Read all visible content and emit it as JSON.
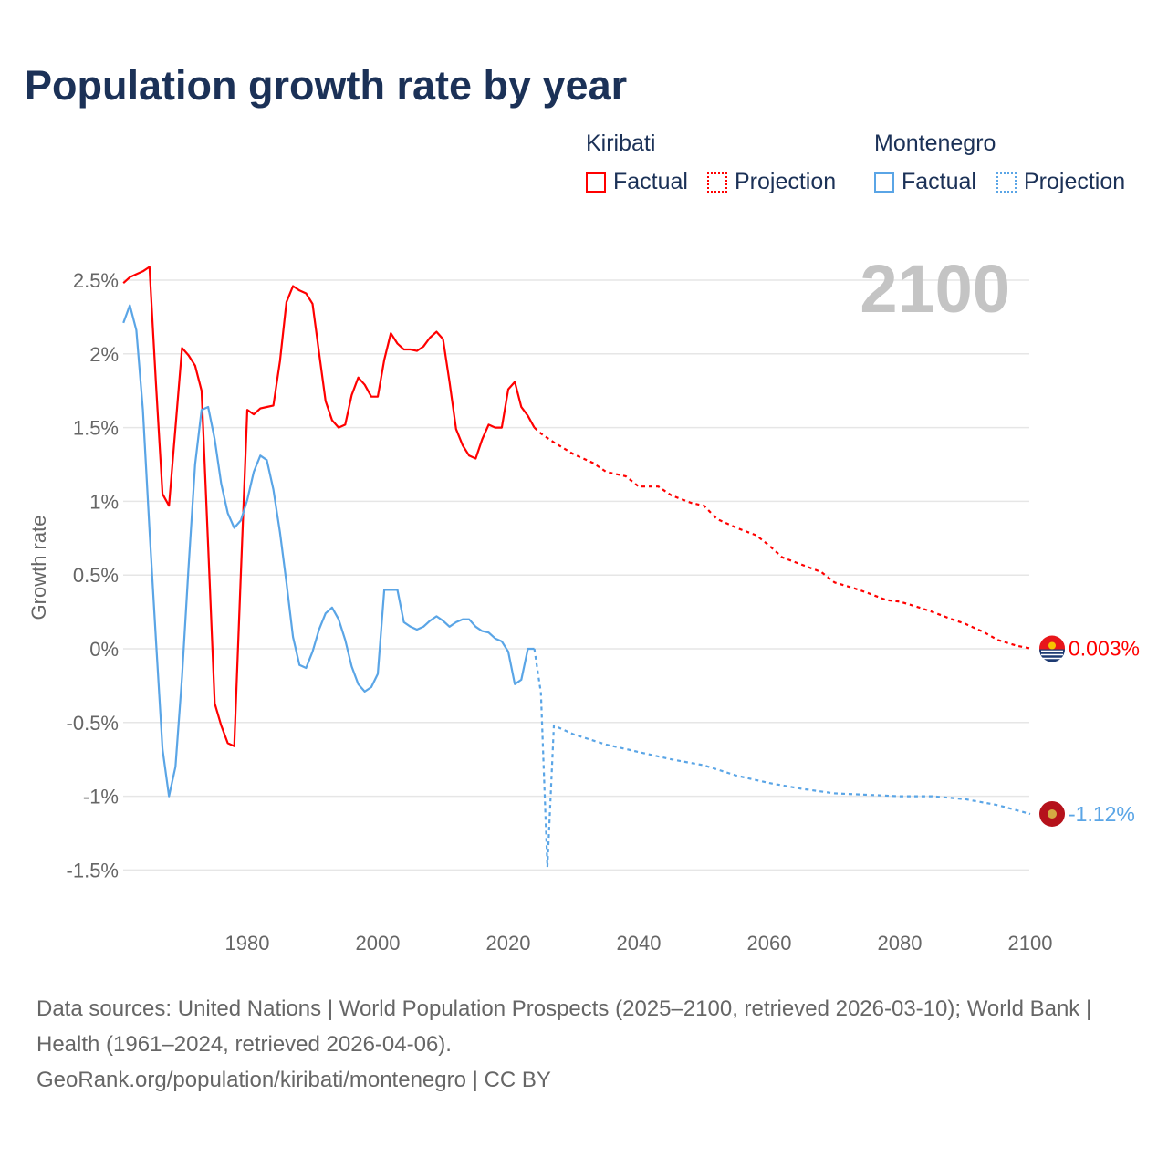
{
  "title": "Population growth rate by year",
  "legend": {
    "groups": [
      {
        "name": "Kiribati",
        "factual": "Factual",
        "projection": "Projection",
        "color": "#ff0000"
      },
      {
        "name": "Montenegro",
        "factual": "Factual",
        "projection": "Projection",
        "color": "#5aa5e6"
      }
    ]
  },
  "year_label": "2100",
  "footer": {
    "sources": "Data sources: United Nations | World Population Prospects (2025–2100, retrieved 2026-03-10); World Bank | Health (1961–2024, retrieved 2026-04-06).",
    "credit": "GeoRank.org/population/kiribati/montenegro | CC BY"
  },
  "chart_data": {
    "type": "line",
    "title": "Population growth rate by year",
    "xlabel": "",
    "ylabel": "Growth rate",
    "xlim": [
      1961,
      2100
    ],
    "ylim": [
      -1.5,
      2.6
    ],
    "x_ticks": [
      1980,
      2000,
      2020,
      2040,
      2060,
      2080,
      2100
    ],
    "y_ticks": [
      -1.5,
      -1,
      -0.5,
      0,
      0.5,
      1,
      1.5,
      2,
      2.5
    ],
    "y_tick_labels": [
      "-1.5%",
      "-1%",
      "-0.5%",
      "0%",
      "0.5%",
      "1%",
      "1.5%",
      "2%",
      "2.5%"
    ],
    "grid": true,
    "series": [
      {
        "name": "Kiribati",
        "kind": "factual",
        "color": "#ff0000",
        "x": [
          1961,
          1962,
          1963,
          1964,
          1965,
          1966,
          1967,
          1968,
          1969,
          1970,
          1971,
          1972,
          1973,
          1974,
          1975,
          1976,
          1977,
          1978,
          1979,
          1980,
          1981,
          1982,
          1983,
          1984,
          1985,
          1986,
          1987,
          1988,
          1989,
          1990,
          1991,
          1992,
          1993,
          1994,
          1995,
          1996,
          1997,
          1998,
          1999,
          2000,
          2001,
          2002,
          2003,
          2004,
          2005,
          2006,
          2007,
          2008,
          2009,
          2010,
          2011,
          2012,
          2013,
          2014,
          2015,
          2016,
          2017,
          2018,
          2019,
          2020,
          2021,
          2022,
          2023,
          2024
        ],
        "values": [
          2.48,
          2.52,
          2.54,
          2.56,
          2.59,
          1.8,
          1.05,
          0.97,
          1.5,
          2.04,
          1.99,
          1.92,
          1.75,
          0.7,
          -0.37,
          -0.52,
          -0.64,
          -0.66,
          0.5,
          1.62,
          1.59,
          1.63,
          1.64,
          1.65,
          1.95,
          2.35,
          2.46,
          2.43,
          2.41,
          2.34,
          2.01,
          1.68,
          1.55,
          1.5,
          1.52,
          1.72,
          1.84,
          1.79,
          1.71,
          1.71,
          1.96,
          2.14,
          2.07,
          2.03,
          2.03,
          2.02,
          2.05,
          2.11,
          2.15,
          2.1,
          1.81,
          1.49,
          1.38,
          1.31,
          1.29,
          1.42,
          1.52,
          1.5,
          1.5,
          1.76,
          1.81,
          1.64,
          1.58,
          1.5
        ]
      },
      {
        "name": "Kiribati",
        "kind": "projection",
        "color": "#ff0000",
        "x": [
          2024,
          2025,
          2027,
          2030,
          2033,
          2035,
          2038,
          2040,
          2043,
          2045,
          2048,
          2050,
          2052,
          2055,
          2058,
          2060,
          2062,
          2065,
          2068,
          2070,
          2073,
          2075,
          2078,
          2080,
          2083,
          2085,
          2088,
          2090,
          2093,
          2095,
          2098,
          2100
        ],
        "values": [
          1.5,
          1.46,
          1.4,
          1.32,
          1.26,
          1.2,
          1.17,
          1.1,
          1.1,
          1.04,
          0.99,
          0.97,
          0.88,
          0.82,
          0.77,
          0.7,
          0.62,
          0.57,
          0.52,
          0.45,
          0.41,
          0.38,
          0.33,
          0.32,
          0.28,
          0.25,
          0.2,
          0.17,
          0.11,
          0.06,
          0.02,
          0.003
        ]
      },
      {
        "name": "Montenegro",
        "kind": "factual",
        "color": "#5aa5e6",
        "x": [
          1961,
          1962,
          1963,
          1964,
          1965,
          1966,
          1967,
          1968,
          1969,
          1970,
          1971,
          1972,
          1973,
          1974,
          1975,
          1976,
          1977,
          1978,
          1979,
          1980,
          1981,
          1982,
          1983,
          1984,
          1985,
          1986,
          1987,
          1988,
          1989,
          1990,
          1991,
          1992,
          1993,
          1994,
          1995,
          1996,
          1997,
          1998,
          1999,
          2000,
          2001,
          2002,
          2003,
          2004,
          2005,
          2006,
          2007,
          2008,
          2009,
          2010,
          2011,
          2012,
          2013,
          2014,
          2015,
          2016,
          2017,
          2018,
          2019,
          2020,
          2021,
          2022,
          2023,
          2024
        ],
        "values": [
          2.21,
          2.33,
          2.16,
          1.62,
          0.81,
          0.06,
          -0.68,
          -1.0,
          -0.8,
          -0.19,
          0.55,
          1.25,
          1.62,
          1.64,
          1.42,
          1.12,
          0.92,
          0.82,
          0.87,
          1.01,
          1.2,
          1.31,
          1.28,
          1.08,
          0.79,
          0.45,
          0.08,
          -0.11,
          -0.13,
          -0.02,
          0.13,
          0.24,
          0.28,
          0.2,
          0.06,
          -0.12,
          -0.24,
          -0.29,
          -0.26,
          -0.17,
          0.4,
          0.4,
          0.4,
          0.18,
          0.15,
          0.13,
          0.15,
          0.19,
          0.22,
          0.19,
          0.15,
          0.18,
          0.2,
          0.2,
          0.15,
          0.12,
          0.11,
          0.07,
          0.05,
          -0.02,
          -0.24,
          -0.21,
          0.0,
          0.0
        ]
      },
      {
        "name": "Montenegro",
        "kind": "projection",
        "color": "#5aa5e6",
        "x": [
          2024,
          2025,
          2026,
          2027,
          2030,
          2035,
          2040,
          2045,
          2050,
          2055,
          2060,
          2065,
          2070,
          2075,
          2080,
          2085,
          2090,
          2095,
          2100
        ],
        "values": [
          0.0,
          -0.3,
          -1.48,
          -0.52,
          -0.58,
          -0.65,
          -0.7,
          -0.75,
          -0.79,
          -0.86,
          -0.91,
          -0.95,
          -0.98,
          -0.99,
          -1.0,
          -1.0,
          -1.02,
          -1.06,
          -1.12
        ]
      }
    ],
    "end_labels": [
      {
        "name": "Kiribati",
        "value": 0.003,
        "label": "0.003%",
        "color": "#ff0000",
        "flag": "kiribati-flag"
      },
      {
        "name": "Montenegro",
        "value": -1.12,
        "label": "-1.12%",
        "color": "#5aa5e6",
        "flag": "montenegro-flag"
      }
    ]
  }
}
